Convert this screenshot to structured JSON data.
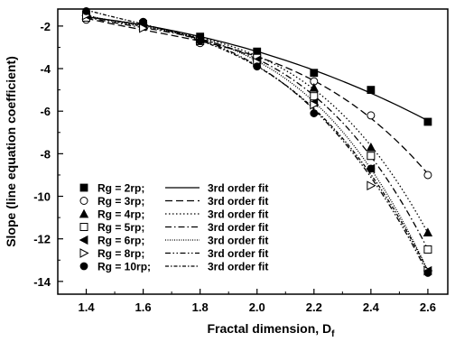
{
  "chart_data": {
    "type": "scatter",
    "title": "",
    "xlabel": "Fractal dimension, D",
    "xlabel_sub": "f",
    "ylabel": "Slope (line equation coefficient)",
    "xlim": [
      1.3,
      2.67
    ],
    "ylim": [
      -14.6,
      -1.2
    ],
    "xticks": [
      1.4,
      1.6,
      1.8,
      2.0,
      2.2,
      2.4,
      2.6
    ],
    "xtick_labels": [
      "1.4",
      "1.6",
      "1.8",
      "2.0",
      "2.2",
      "2.4",
      "2.6"
    ],
    "yticks": [
      -2,
      -4,
      -6,
      -8,
      -10,
      -12,
      -14
    ],
    "ytick_labels": [
      "-2",
      "-4",
      "-6",
      "-8",
      "-10",
      "-12",
      "-14"
    ],
    "grid": false,
    "legend_position": "bottom-left",
    "series": [
      {
        "name": "Rg = 2rp;",
        "marker": "square-filled",
        "fit_label": "3rd order fit",
        "fit_style": "solid",
        "x": [
          1.4,
          1.6,
          1.8,
          2.0,
          2.2,
          2.4,
          2.6
        ],
        "y": [
          -1.6,
          -1.9,
          -2.5,
          -3.2,
          -4.2,
          -5.0,
          -6.5
        ]
      },
      {
        "name": "Rg = 3rp;",
        "marker": "circle-open",
        "fit_label": "3rd order fit",
        "fit_style": "dash",
        "x": [
          1.4,
          1.6,
          1.8,
          2.0,
          2.2,
          2.4,
          2.6
        ],
        "y": [
          -1.7,
          -2.0,
          -2.8,
          -3.5,
          -4.6,
          -6.2,
          -9.0
        ]
      },
      {
        "name": "Rg = 4rp;",
        "marker": "triangle-up-filled",
        "fit_label": "3rd order fit",
        "fit_style": "dot",
        "x": [
          1.4,
          1.6,
          1.8,
          2.0,
          2.2,
          2.4,
          2.6
        ],
        "y": [
          -1.5,
          -2.0,
          -2.6,
          -3.4,
          -4.9,
          -7.7,
          -11.7
        ]
      },
      {
        "name": "Rg = 5rp;",
        "marker": "square-open",
        "fit_label": "3rd order fit",
        "fit_style": "dashdot",
        "x": [
          1.4,
          1.6,
          1.8,
          2.0,
          2.2,
          2.4,
          2.6
        ],
        "y": [
          -1.6,
          -2.0,
          -2.7,
          -3.5,
          -5.3,
          -8.1,
          -12.5
        ]
      },
      {
        "name": "Rg = 6rp;",
        "marker": "triangle-left-filled",
        "fit_label": "3rd order fit",
        "fit_style": "shortdot",
        "x": [
          1.4,
          1.6,
          1.8,
          2.0,
          2.2,
          2.4,
          2.6
        ],
        "y": [
          -1.5,
          -2.0,
          -2.6,
          -3.6,
          -5.6,
          -8.7,
          -13.5
        ]
      },
      {
        "name": "Rg = 8rp;",
        "marker": "triangle-right-open",
        "fit_label": "3rd order fit",
        "fit_style": "dashdotdot",
        "x": [
          1.4,
          1.6,
          1.8,
          2.0,
          2.2,
          2.4,
          2.6
        ],
        "y": [
          -1.5,
          -2.1,
          -2.7,
          -3.7,
          -5.7,
          -9.5,
          -13.5
        ]
      },
      {
        "name": "Rg = 10rp;",
        "marker": "circle-filled",
        "fit_label": "3rd order fit",
        "fit_style": "shortdashdot",
        "x": [
          1.4,
          1.6,
          1.8,
          2.0,
          2.2,
          2.4,
          2.6
        ],
        "y": [
          -1.3,
          -1.8,
          -2.7,
          -3.9,
          -6.1,
          -8.7,
          -13.6
        ]
      }
    ]
  }
}
